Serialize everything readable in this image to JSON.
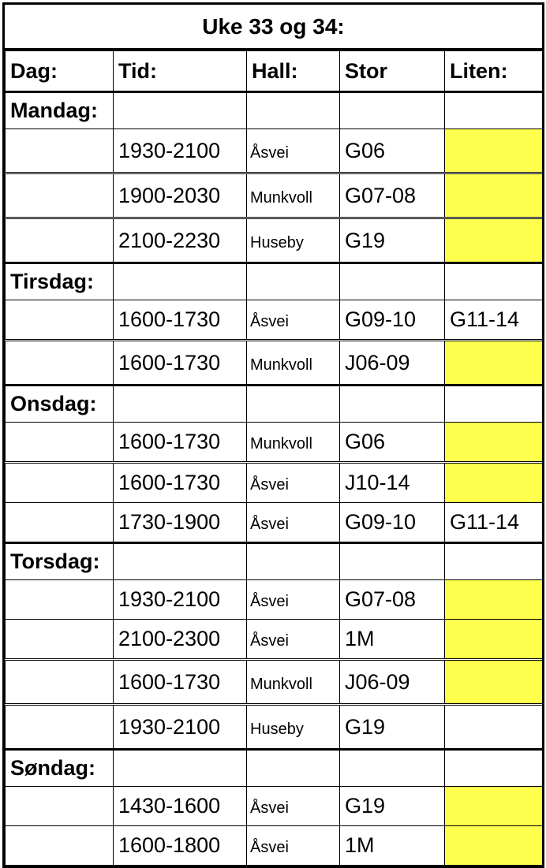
{
  "title": "Uke 33 og 34:",
  "headers": {
    "dag": "Dag:",
    "tid": "Tid:",
    "hall": "Hall:",
    "stor": "Stor",
    "liten": "Liten:"
  },
  "colors": {
    "highlight": "#ffff4d",
    "border": "#000000"
  },
  "days": [
    {
      "name": "Mandag:",
      "rows": [
        {
          "tid": "1930-2100",
          "hall": "Åsvei",
          "stor": "G06",
          "liten": "",
          "highlight": true
        },
        {
          "tid": "1900-2030",
          "hall": "Munkvoll",
          "stor": "G07-08",
          "liten": "",
          "highlight": true
        },
        {
          "tid": "2100-2230",
          "hall": "Huseby",
          "stor": "G19",
          "liten": "",
          "highlight": true
        }
      ]
    },
    {
      "name": "Tirsdag:",
      "rows": [
        {
          "tid": "1600-1730",
          "hall": "Åsvei",
          "stor": "G09-10",
          "liten": "G11-14",
          "highlight": false
        },
        {
          "tid": "1600-1730",
          "hall": "Munkvoll",
          "stor": "J06-09",
          "liten": "",
          "highlight": true
        }
      ]
    },
    {
      "name": "Onsdag:",
      "rows": [
        {
          "tid": "1600-1730",
          "hall": "Munkvoll",
          "stor": "G06",
          "liten": "",
          "highlight": true
        },
        {
          "tid": "1600-1730",
          "hall": "Åsvei",
          "stor": "J10-14",
          "liten": "",
          "highlight": true
        },
        {
          "tid": "1730-1900",
          "hall": "Åsvei",
          "stor": "G09-10",
          "liten": "G11-14",
          "highlight": false
        }
      ]
    },
    {
      "name": "Torsdag:",
      "rows": [
        {
          "tid": "1930-2100",
          "hall": "Åsvei",
          "stor": "G07-08",
          "liten": "",
          "highlight": true
        },
        {
          "tid": "2100-2300",
          "hall": "Åsvei",
          "stor": "1M",
          "liten": "",
          "highlight": true
        },
        {
          "tid": "1600-1730",
          "hall": "Munkvoll",
          "stor": "J06-09",
          "liten": "",
          "highlight": true
        },
        {
          "tid": "1930-2100",
          "hall": "Huseby",
          "stor": "G19",
          "liten": "",
          "highlight": false
        }
      ]
    },
    {
      "name": "Søndag:",
      "rows": [
        {
          "tid": "1430-1600",
          "hall": "Åsvei",
          "stor": "G19",
          "liten": "",
          "highlight": true
        },
        {
          "tid": "1600-1800",
          "hall": "Åsvei",
          "stor": "1M",
          "liten": "",
          "highlight": true
        }
      ]
    }
  ]
}
